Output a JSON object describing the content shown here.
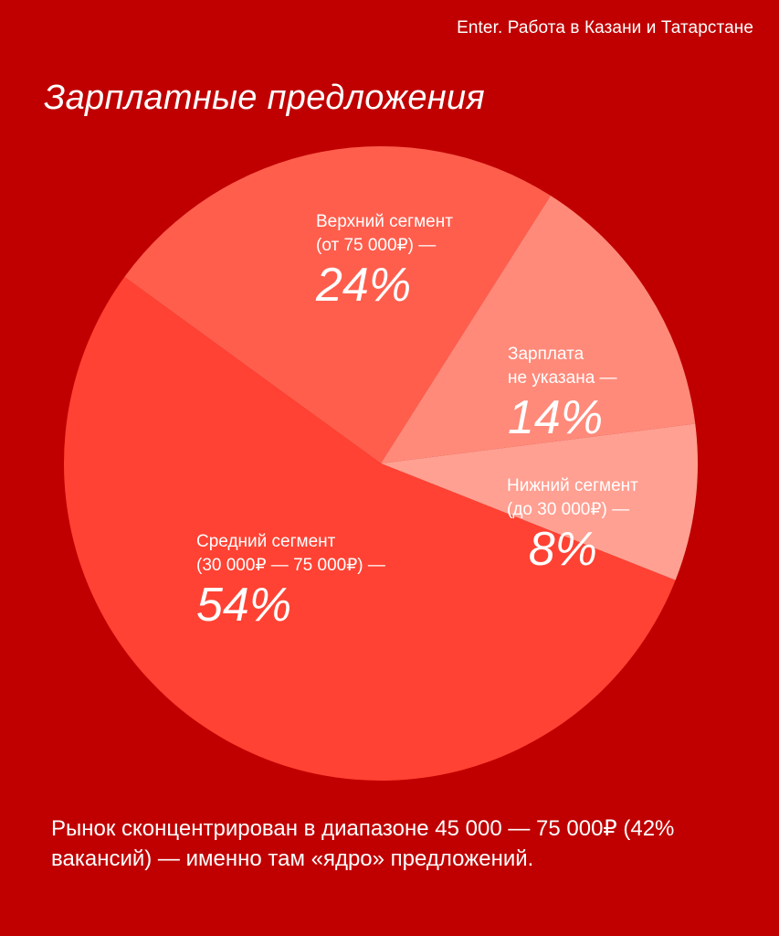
{
  "source": "Enter. Работа в Казани и Татарстане",
  "title": "Зарплатные предложения",
  "chart_data": {
    "type": "pie",
    "slices": [
      {
        "name": "Верхний сегмент",
        "range": "(от 75 000₽) —",
        "value": 24,
        "label": "24%",
        "color": "#ff5e4d"
      },
      {
        "name": "Зарплата",
        "range": "не указана —",
        "value": 14,
        "label": "14%",
        "color": "#ff8a7a"
      },
      {
        "name": "Нижний сегмент",
        "range": "(до 30 000₽) —",
        "value": 8,
        "label": "8%",
        "color": "#ffa092"
      },
      {
        "name": "Средний сегмент",
        "range": "(30 000₽ — 75 000₽) —",
        "value": 54,
        "label": "54%",
        "color": "#ff4233"
      }
    ]
  },
  "footnote": "Рынок сконцентрирован в диапазоне 45 000 — 75 000₽ (42% вакансий) — именно там «ядро» предложений.",
  "colors": {
    "background": "#c00000",
    "text": "#ffffff"
  }
}
